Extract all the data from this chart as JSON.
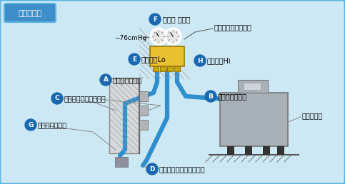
{
  "bg_color": "#cce8f4",
  "border_color": "#5ab4e0",
  "title_box_color": "#3d8ec9",
  "title_text": "構　成　図",
  "title_text_color": "#ffffff",
  "label_circle_color": "#1a69b0",
  "label_text_color": "#ffffff",
  "main_text_color": "#000000",
  "hose_color": "#2f8fce",
  "manifold_body_color": "#e8c030",
  "pump_color": "#a8b0b8",
  "gauge_label": "ゲージマニホールド",
  "pressure_label": "−76cmHg",
  "pump_label": "真空ポンプ",
  "label_F_text": "連成計 圧力計",
  "label_E_text": "ハンドルLo",
  "label_H_text": "ハンドルHi",
  "label_A_text": "チャージホース",
  "label_B_text": "チャージホース",
  "label_C_text": "二方弁（液側・細管）",
  "label_G_text": "チャージポート",
  "label_D_text": "三方弁（ガス側・太管）"
}
